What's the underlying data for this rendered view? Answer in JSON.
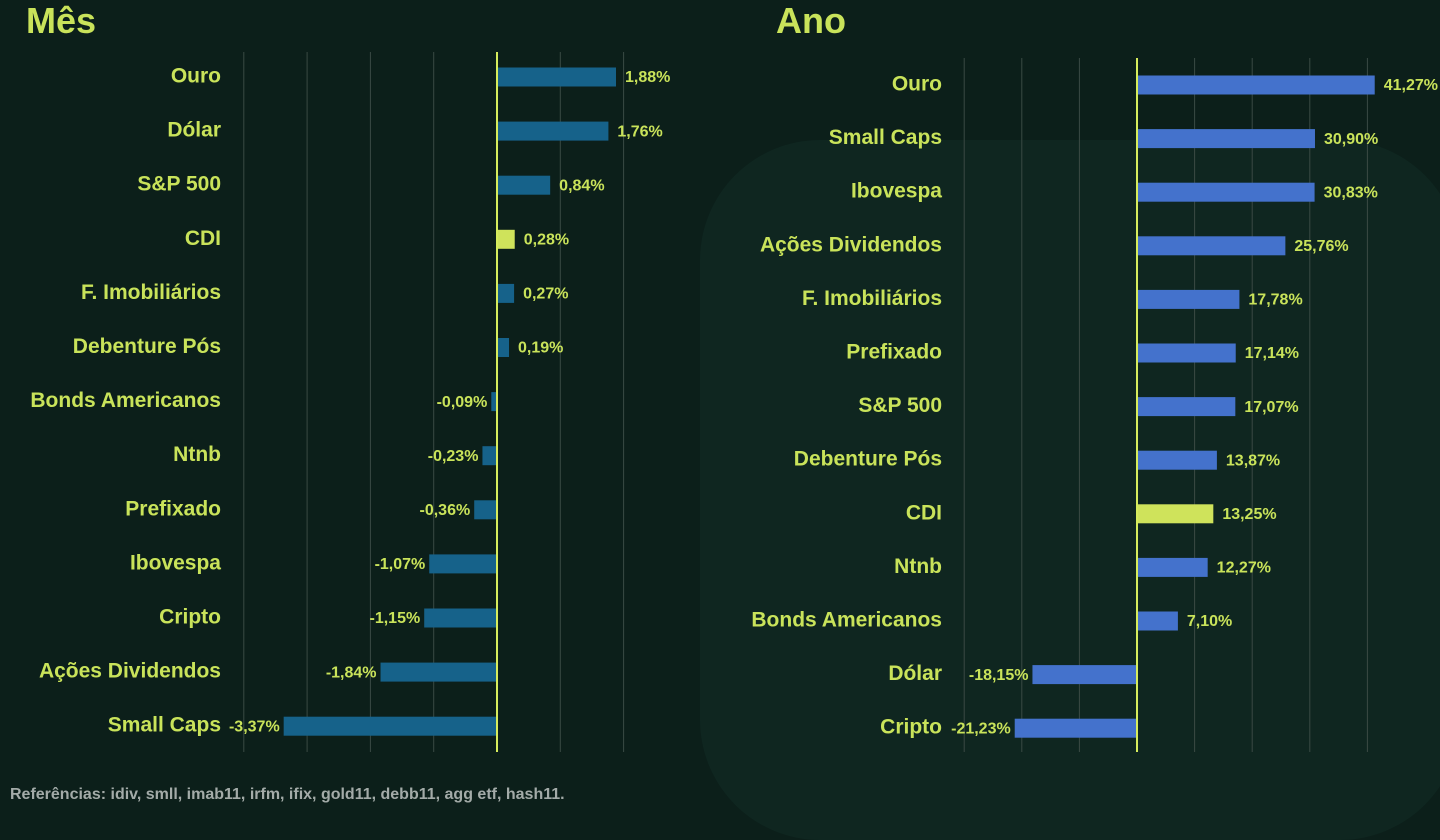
{
  "footer": {
    "text": "Referências: idiv, smll, imab11, irfm, ifix, gold11, debb11, agg etf, hash11."
  },
  "colors": {
    "background": "#0c1f1a",
    "accent_text": "#c9e35a",
    "month_bar": "#16628a",
    "year_bar": "#4472cc",
    "cdi_bar": "#cfe35b",
    "zero_line": "#d6ec5c",
    "footer_text": "#a3aba8"
  },
  "chart_data": [
    {
      "type": "bar",
      "orientation": "horizontal",
      "title": "Mês",
      "categories": [
        "Ouro",
        "Dólar",
        "S&P 500",
        "CDI",
        "F. Imobiliários",
        "Debenture Pós",
        "Bonds Americanos",
        "Ntnb",
        "Prefixado",
        "Ibovespa",
        "Cripto",
        "Ações Dividendos",
        "Small Caps"
      ],
      "values": [
        1.88,
        1.76,
        0.84,
        0.28,
        0.27,
        0.19,
        -0.09,
        -0.23,
        -0.36,
        -1.07,
        -1.15,
        -1.84,
        -3.37
      ],
      "labels": [
        "1,88%",
        "1,76%",
        "0,84%",
        "0,28%",
        "0,27%",
        "0,19%",
        "-0,09%",
        "-0,23%",
        "-0,36%",
        "-1,07%",
        "-1,15%",
        "-1,84%",
        "-3,37%"
      ],
      "highlight": "CDI",
      "xlim": [
        -4,
        2.5
      ],
      "xlabel": "",
      "ylabel": "",
      "grid": true
    },
    {
      "type": "bar",
      "orientation": "horizontal",
      "title": "Ano",
      "categories": [
        "Ouro",
        "Small Caps",
        "Ibovespa",
        "Ações Dividendos",
        "F. Imobiliários",
        "Prefixado",
        "S&P 500",
        "Debenture Pós",
        "CDI",
        "Ntnb",
        "Bonds Americanos",
        "Dólar",
        "Cripto"
      ],
      "values": [
        41.27,
        30.9,
        30.83,
        25.76,
        17.78,
        17.14,
        17.07,
        13.87,
        13.25,
        12.27,
        7.1,
        -18.15,
        -21.23
      ],
      "labels": [
        "41,27%",
        "30,90%",
        "30,83%",
        "25,76%",
        "17,78%",
        "17,14%",
        "17,07%",
        "13,87%",
        "13,25%",
        "12,27%",
        "7,10%",
        "-18,15%",
        "-21,23%"
      ],
      "highlight": "CDI",
      "xlim": [
        -30,
        40
      ],
      "xlabel": "",
      "ylabel": "",
      "grid": true
    }
  ]
}
